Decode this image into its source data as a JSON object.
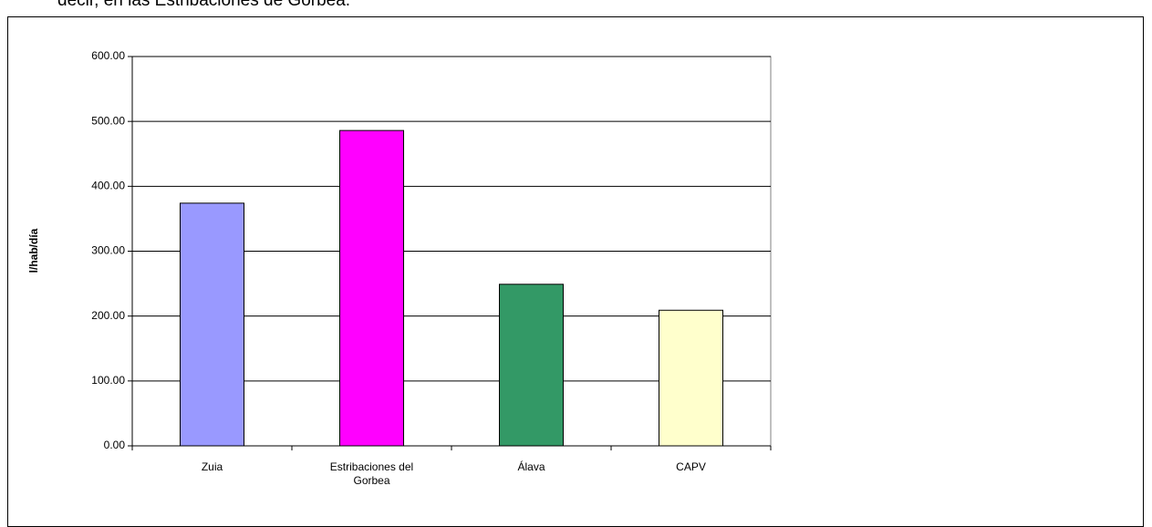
{
  "text_above": "decir, en las Estribaciones de Gorbea.",
  "chart_data": {
    "type": "bar",
    "ylabel": "l/hab/día",
    "categories": [
      "Zuia",
      "Estribaciones del Gorbea",
      "Álava",
      "CAPV"
    ],
    "values": [
      374,
      486,
      249,
      209
    ],
    "colors": [
      "#9999ff",
      "#ff00ff",
      "#339966",
      "#ffffcc"
    ],
    "ylim": [
      0,
      600
    ],
    "yticks": [
      {
        "value": 0,
        "label": "0.00"
      },
      {
        "value": 100,
        "label": "100.00"
      },
      {
        "value": 200,
        "label": "200.00"
      },
      {
        "value": 300,
        "label": "300.00"
      },
      {
        "value": 400,
        "label": "400.00"
      },
      {
        "value": 500,
        "label": "500.00"
      },
      {
        "value": 600,
        "label": "600.00"
      }
    ],
    "grid": true
  }
}
